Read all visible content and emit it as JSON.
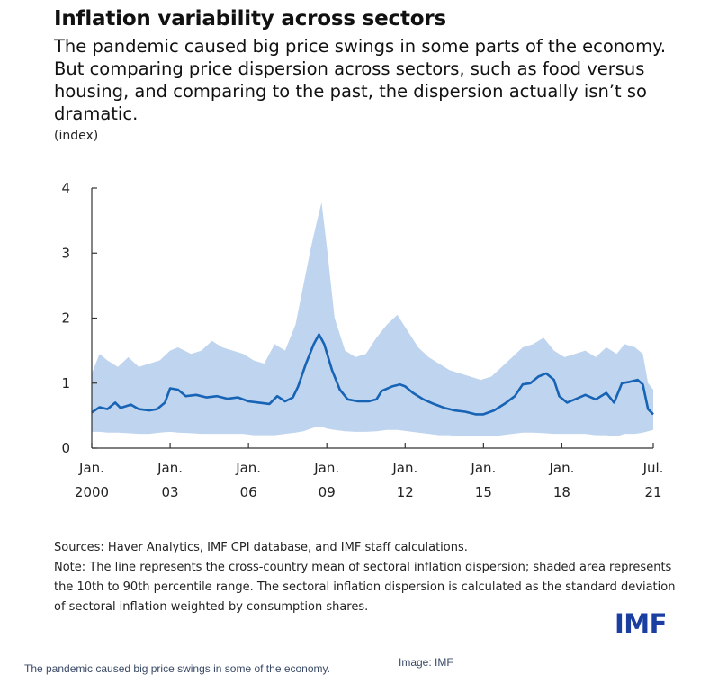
{
  "header": {
    "title": "Inflation variability across sectors",
    "subtitle": "The pandemic caused big price swings in some parts of the economy. But comparing price dispersion across sectors, such as food versus housing, and comparing to the past, the dispersion actually isn’t so dramatic.",
    "unit": "(index)"
  },
  "chart_data": {
    "type": "area",
    "ylim": [
      0,
      4
    ],
    "xlim": [
      2000.0,
      2021.5
    ],
    "y_ticks": [
      0,
      1,
      2,
      3,
      4
    ],
    "x_ticks": [
      {
        "x": 2000.0,
        "line1": "Jan.",
        "line2": "2000"
      },
      {
        "x": 2003.0,
        "line1": "Jan.",
        "line2": "03"
      },
      {
        "x": 2006.0,
        "line1": "Jan.",
        "line2": "06"
      },
      {
        "x": 2009.0,
        "line1": "Jan.",
        "line2": "09"
      },
      {
        "x": 2012.0,
        "line1": "Jan.",
        "line2": "12"
      },
      {
        "x": 2015.0,
        "line1": "Jan.",
        "line2": "15"
      },
      {
        "x": 2018.0,
        "line1": "Jan.",
        "line2": "18"
      },
      {
        "x": 2021.5,
        "line1": "Jul.",
        "line2": "21"
      }
    ],
    "grid": false,
    "line_color": "#1763b5",
    "band_color": "#bfd4ee",
    "mean": [
      [
        2000.0,
        0.55
      ],
      [
        2000.3,
        0.63
      ],
      [
        2000.6,
        0.6
      ],
      [
        2000.9,
        0.7
      ],
      [
        2001.1,
        0.62
      ],
      [
        2001.5,
        0.67
      ],
      [
        2001.8,
        0.6
      ],
      [
        2002.2,
        0.58
      ],
      [
        2002.5,
        0.6
      ],
      [
        2002.8,
        0.7
      ],
      [
        2003.0,
        0.92
      ],
      [
        2003.3,
        0.9
      ],
      [
        2003.6,
        0.8
      ],
      [
        2004.0,
        0.82
      ],
      [
        2004.4,
        0.78
      ],
      [
        2004.8,
        0.8
      ],
      [
        2005.2,
        0.76
      ],
      [
        2005.6,
        0.78
      ],
      [
        2006.0,
        0.72
      ],
      [
        2006.4,
        0.7
      ],
      [
        2006.8,
        0.68
      ],
      [
        2007.1,
        0.8
      ],
      [
        2007.4,
        0.72
      ],
      [
        2007.7,
        0.78
      ],
      [
        2007.9,
        0.95
      ],
      [
        2008.2,
        1.3
      ],
      [
        2008.5,
        1.6
      ],
      [
        2008.7,
        1.75
      ],
      [
        2008.9,
        1.6
      ],
      [
        2009.2,
        1.2
      ],
      [
        2009.5,
        0.9
      ],
      [
        2009.8,
        0.75
      ],
      [
        2010.2,
        0.72
      ],
      [
        2010.6,
        0.72
      ],
      [
        2010.9,
        0.75
      ],
      [
        2011.1,
        0.88
      ],
      [
        2011.5,
        0.95
      ],
      [
        2011.8,
        0.98
      ],
      [
        2012.0,
        0.95
      ],
      [
        2012.3,
        0.85
      ],
      [
        2012.7,
        0.75
      ],
      [
        2013.1,
        0.68
      ],
      [
        2013.5,
        0.62
      ],
      [
        2013.9,
        0.58
      ],
      [
        2014.3,
        0.56
      ],
      [
        2014.7,
        0.52
      ],
      [
        2015.0,
        0.52
      ],
      [
        2015.4,
        0.58
      ],
      [
        2015.8,
        0.68
      ],
      [
        2016.2,
        0.8
      ],
      [
        2016.5,
        0.98
      ],
      [
        2016.8,
        1.0
      ],
      [
        2017.1,
        1.1
      ],
      [
        2017.4,
        1.15
      ],
      [
        2017.7,
        1.05
      ],
      [
        2017.9,
        0.8
      ],
      [
        2018.2,
        0.7
      ],
      [
        2018.5,
        0.75
      ],
      [
        2018.9,
        0.82
      ],
      [
        2019.3,
        0.75
      ],
      [
        2019.7,
        0.85
      ],
      [
        2020.0,
        0.7
      ],
      [
        2020.3,
        1.0
      ],
      [
        2020.6,
        1.02
      ],
      [
        2020.9,
        1.05
      ],
      [
        2021.1,
        0.98
      ],
      [
        2021.3,
        0.6
      ],
      [
        2021.5,
        0.52
      ]
    ],
    "p10_p90": [
      [
        2000.0,
        0.25,
        1.15
      ],
      [
        2000.3,
        0.25,
        1.45
      ],
      [
        2000.6,
        0.24,
        1.35
      ],
      [
        2001.0,
        0.24,
        1.25
      ],
      [
        2001.4,
        0.23,
        1.4
      ],
      [
        2001.8,
        0.22,
        1.25
      ],
      [
        2002.2,
        0.22,
        1.3
      ],
      [
        2002.6,
        0.24,
        1.35
      ],
      [
        2003.0,
        0.25,
        1.5
      ],
      [
        2003.3,
        0.24,
        1.55
      ],
      [
        2003.8,
        0.23,
        1.45
      ],
      [
        2004.2,
        0.22,
        1.5
      ],
      [
        2004.6,
        0.22,
        1.65
      ],
      [
        2005.0,
        0.22,
        1.55
      ],
      [
        2005.4,
        0.22,
        1.5
      ],
      [
        2005.8,
        0.22,
        1.45
      ],
      [
        2006.2,
        0.2,
        1.35
      ],
      [
        2006.6,
        0.2,
        1.3
      ],
      [
        2007.0,
        0.2,
        1.6
      ],
      [
        2007.4,
        0.22,
        1.5
      ],
      [
        2007.8,
        0.24,
        1.9
      ],
      [
        2008.1,
        0.26,
        2.5
      ],
      [
        2008.4,
        0.3,
        3.1
      ],
      [
        2008.6,
        0.33,
        3.45
      ],
      [
        2008.8,
        0.33,
        3.78
      ],
      [
        2009.0,
        0.3,
        3.1
      ],
      [
        2009.3,
        0.28,
        2.0
      ],
      [
        2009.7,
        0.26,
        1.5
      ],
      [
        2010.1,
        0.25,
        1.4
      ],
      [
        2010.5,
        0.25,
        1.45
      ],
      [
        2010.9,
        0.26,
        1.7
      ],
      [
        2011.3,
        0.28,
        1.9
      ],
      [
        2011.7,
        0.28,
        2.05
      ],
      [
        2012.1,
        0.26,
        1.8
      ],
      [
        2012.5,
        0.24,
        1.55
      ],
      [
        2012.9,
        0.22,
        1.4
      ],
      [
        2013.3,
        0.2,
        1.3
      ],
      [
        2013.7,
        0.2,
        1.2
      ],
      [
        2014.1,
        0.18,
        1.15
      ],
      [
        2014.5,
        0.18,
        1.1
      ],
      [
        2014.9,
        0.18,
        1.05
      ],
      [
        2015.3,
        0.18,
        1.1
      ],
      [
        2015.7,
        0.2,
        1.25
      ],
      [
        2016.1,
        0.22,
        1.4
      ],
      [
        2016.5,
        0.24,
        1.55
      ],
      [
        2016.9,
        0.24,
        1.6
      ],
      [
        2017.3,
        0.23,
        1.7
      ],
      [
        2017.7,
        0.22,
        1.5
      ],
      [
        2018.1,
        0.22,
        1.4
      ],
      [
        2018.5,
        0.22,
        1.45
      ],
      [
        2018.9,
        0.22,
        1.5
      ],
      [
        2019.3,
        0.2,
        1.4
      ],
      [
        2019.7,
        0.2,
        1.55
      ],
      [
        2020.1,
        0.18,
        1.45
      ],
      [
        2020.4,
        0.22,
        1.6
      ],
      [
        2020.8,
        0.22,
        1.55
      ],
      [
        2021.1,
        0.24,
        1.45
      ],
      [
        2021.3,
        0.26,
        1.0
      ],
      [
        2021.5,
        0.28,
        0.9
      ]
    ]
  },
  "footer": {
    "sources": "Sources: Haver Analytics, IMF CPI database, and IMF staff calculations.",
    "note": "Note: The line represents the cross-country mean of sectoral inflation dispersion; shaded area represents the 10th to 90th percentile range. The sectoral inflation dispersion is calculated as the standard deviation of sectoral inflation weighted by consumption shares.",
    "logo": "IMF"
  },
  "page": {
    "caption": "The pandemic caused big price swings in some of the economy.",
    "credit": "Image: IMF"
  }
}
